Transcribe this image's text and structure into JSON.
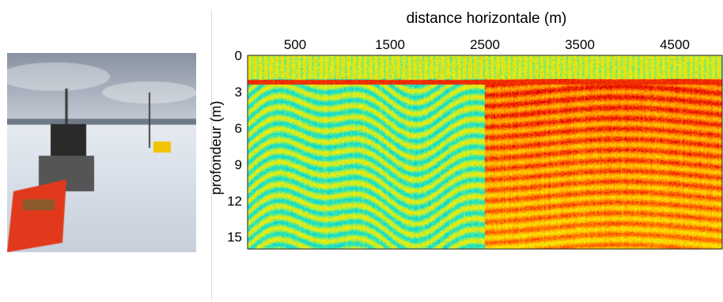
{
  "photo": {
    "description_icon": "field-photo-gpr-sled-on-snow"
  },
  "chart_data": {
    "type": "heatmap",
    "title": "",
    "xlabel": "distance horizontale (m)",
    "ylabel": "profondeur (m)",
    "xlim": [
      0,
      5000
    ],
    "ylim": [
      16,
      0
    ],
    "x_ticks": [
      500,
      1500,
      2500,
      3500,
      4500
    ],
    "y_ticks": [
      0,
      3,
      6,
      9,
      12,
      15
    ],
    "x_tick_labels": [
      "500",
      "1500",
      "2500",
      "3500",
      "4500"
    ],
    "y_tick_labels": [
      "0",
      "3",
      "6",
      "9",
      "12",
      "15"
    ],
    "x_axis_position": "top",
    "colormap": [
      "#00bfe6",
      "#19e6c8",
      "#a0ee4a",
      "#ffee00",
      "#ffb000",
      "#ff6000",
      "#e10000"
    ],
    "surface_reflector_depth": 2.2,
    "regions": [
      {
        "x": [
          0,
          2500
        ],
        "description_value": 0.3
      },
      {
        "x": [
          2500,
          5000
        ],
        "description_value": 0.72
      }
    ]
  }
}
